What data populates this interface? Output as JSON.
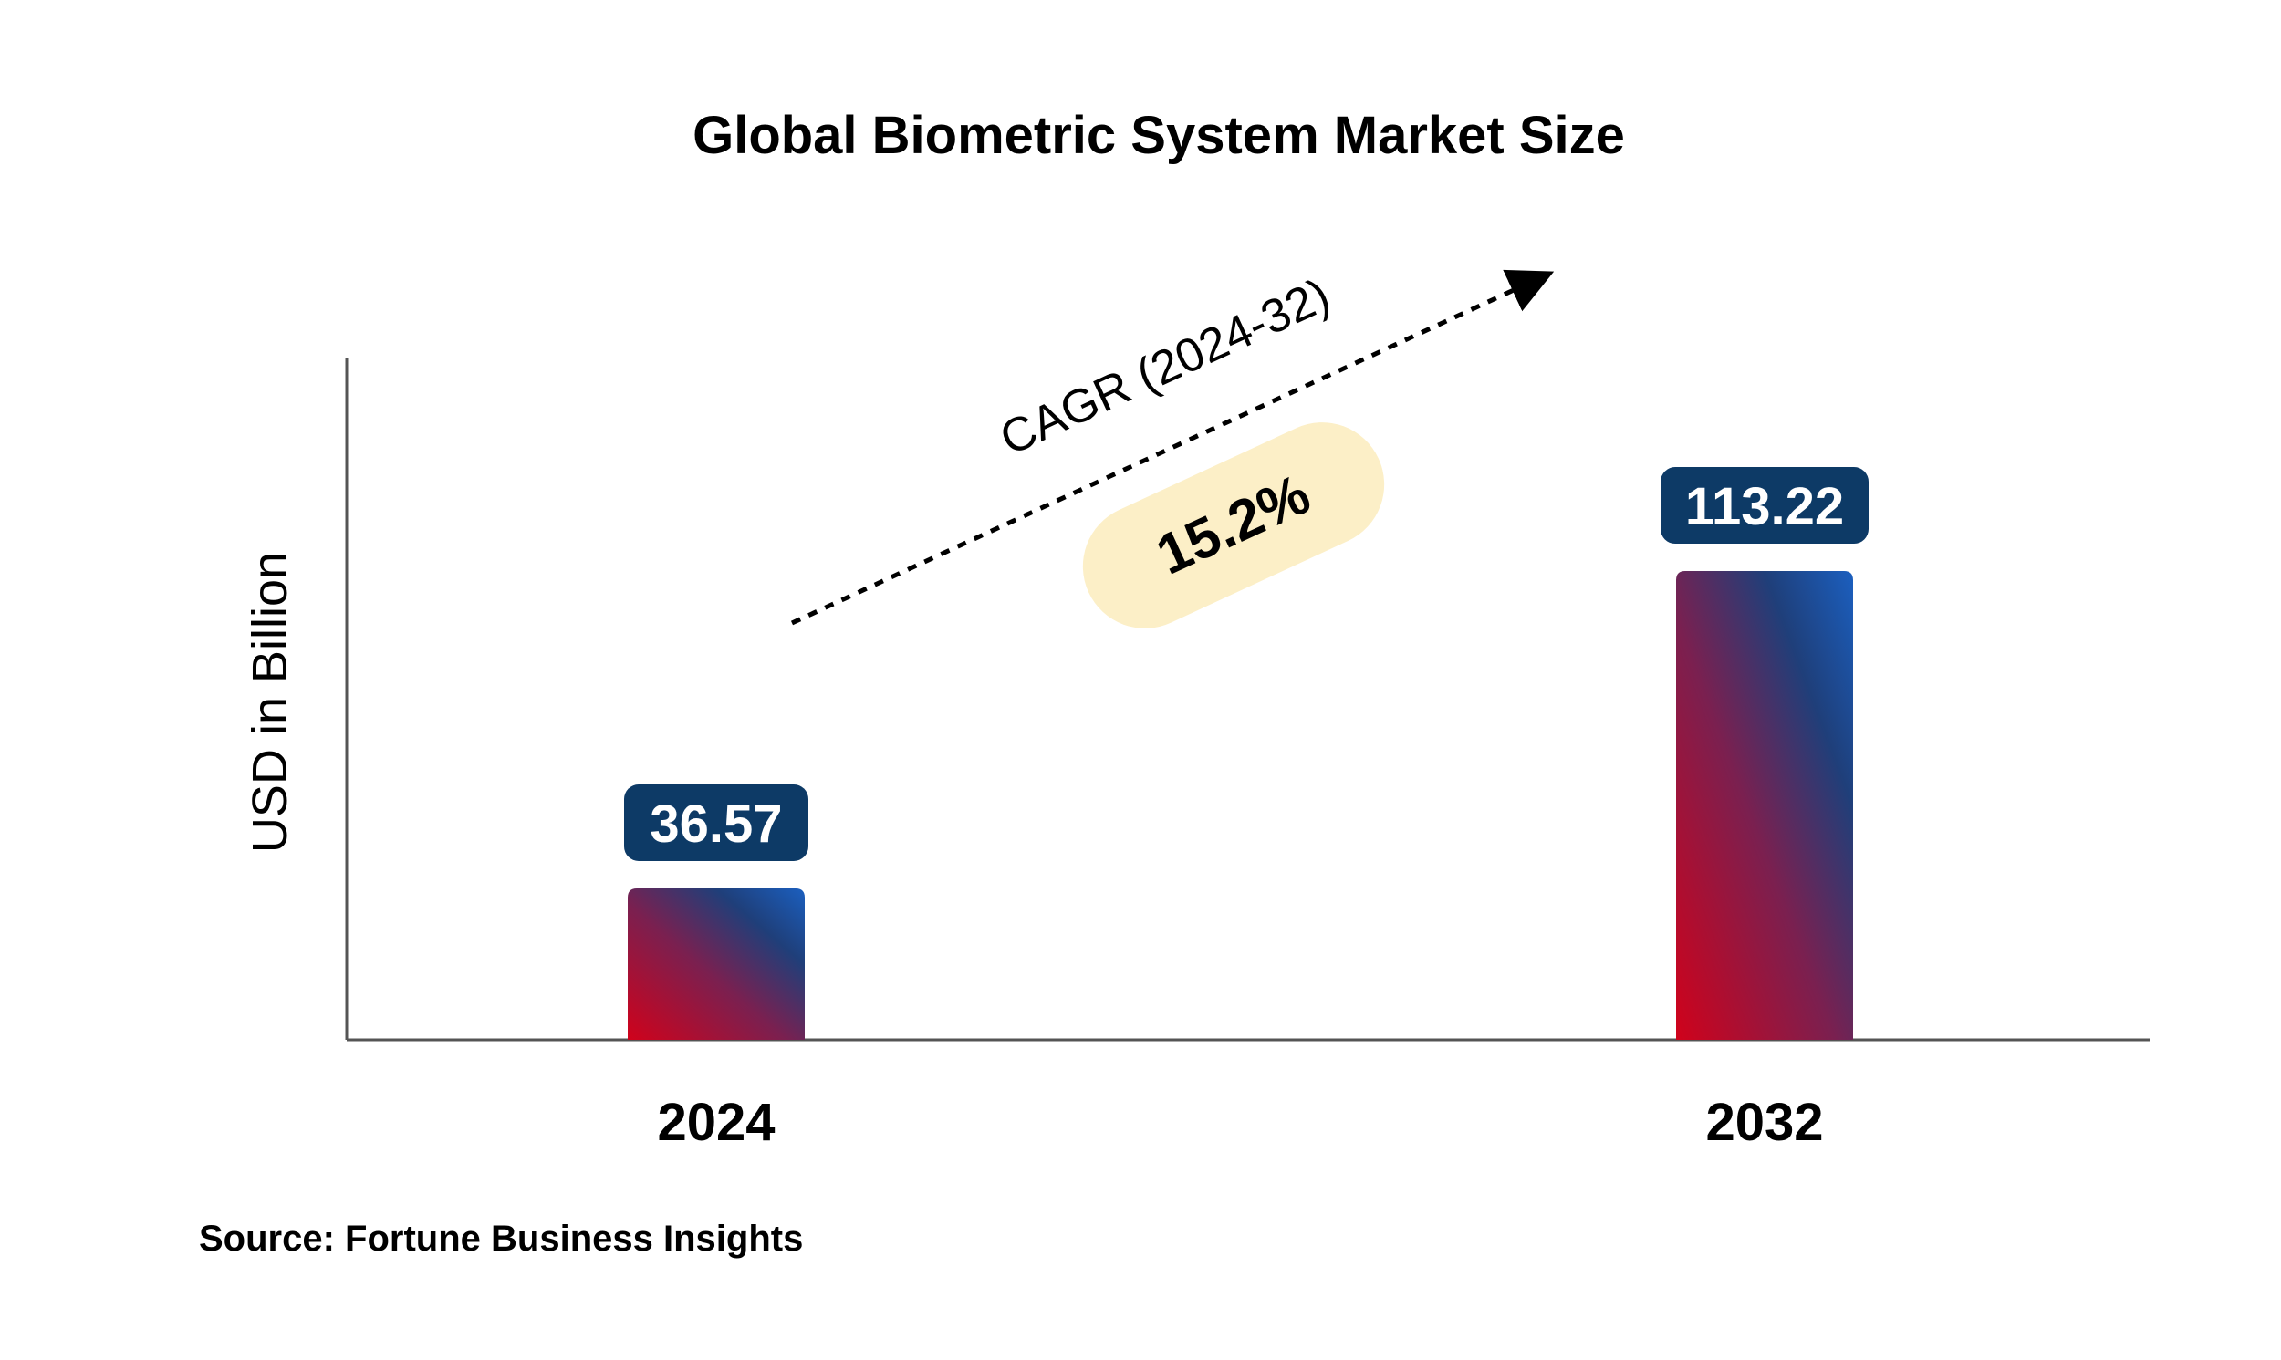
{
  "chart_data": {
    "type": "bar",
    "title": "Global Biometric System Market Size",
    "ylabel": "USD in Billion",
    "xlabel": "",
    "categories": [
      "2024",
      "2032"
    ],
    "values": [
      36.57,
      113.22
    ],
    "data_labels": [
      "36.57",
      "113.22"
    ],
    "ylim": [
      0,
      130
    ],
    "grid": false,
    "legend": "none",
    "annotation": {
      "text": "CAGR (2024-32)",
      "value": "15.2%"
    },
    "source": "Source: Fortune Business Insights"
  },
  "colors": {
    "bar_gradient_start": "#d0021b",
    "bar_gradient_mid": "#7a2050",
    "bar_gradient_end": "#1b5fbf",
    "label_bg": "#0d3a66",
    "label_text": "#ffffff",
    "cagr_badge_bg": "#fcefc7",
    "axis": "#555555",
    "text": "#000000"
  }
}
